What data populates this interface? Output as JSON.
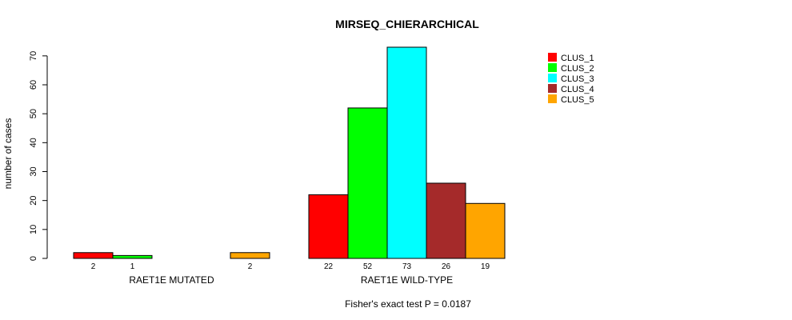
{
  "chart_data": {
    "type": "bar",
    "title": "MIRSEQ_CHIERARCHICAL",
    "xlabel": "",
    "ylabel": "number of cases",
    "footer": "Fisher's exact test P = 0.0187",
    "ylim": [
      0,
      73
    ],
    "yticks": [
      0,
      10,
      20,
      30,
      40,
      50,
      60,
      70
    ],
    "groups": [
      "RAET1E MUTATED",
      "RAET1E WILD-TYPE"
    ],
    "series": [
      {
        "name": "CLUS_1",
        "color": "#ff0000",
        "values": [
          2,
          22
        ],
        "labels": [
          "2",
          "22"
        ]
      },
      {
        "name": "CLUS_2",
        "color": "#00ff00",
        "values": [
          1,
          52
        ],
        "labels": [
          "1",
          "52"
        ]
      },
      {
        "name": "CLUS_3",
        "color": "#00ffff",
        "values": [
          0,
          73
        ],
        "labels": [
          "",
          "73"
        ]
      },
      {
        "name": "CLUS_4",
        "color": "#a52a2a",
        "values": [
          0,
          26
        ],
        "labels": [
          "",
          "26"
        ]
      },
      {
        "name": "CLUS_5",
        "color": "#ffa500",
        "values": [
          2,
          19
        ],
        "labels": [
          "2",
          "19"
        ]
      }
    ],
    "legend_position": "top-right",
    "grid": false
  }
}
